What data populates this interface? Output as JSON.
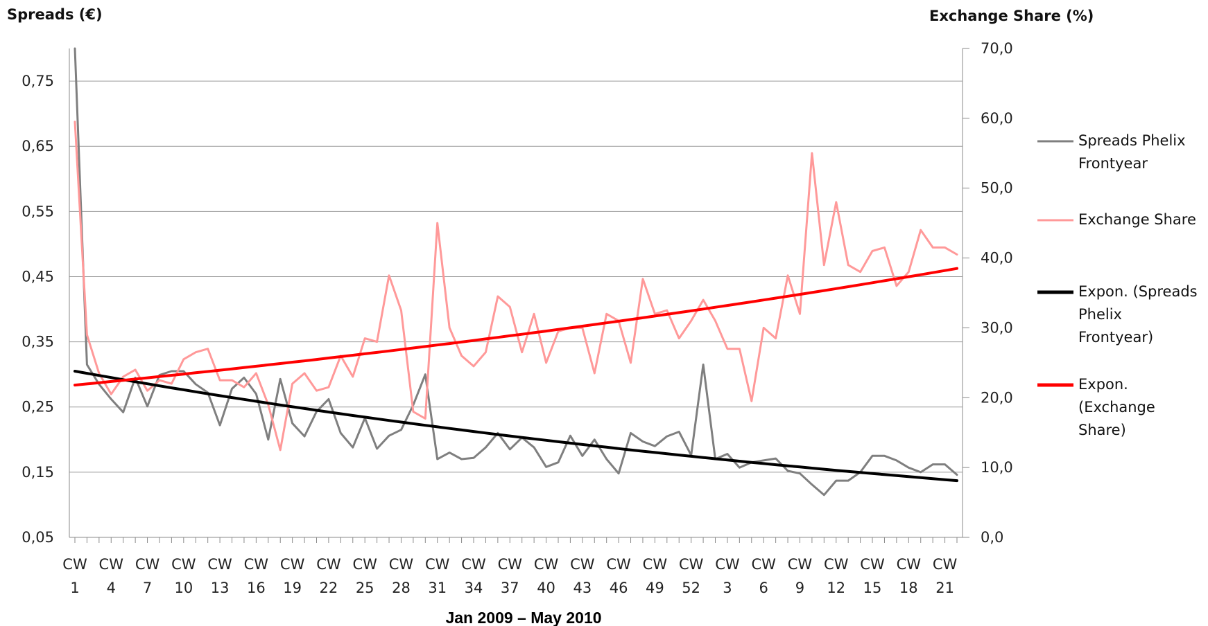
{
  "chart_data": {
    "type": "line",
    "y_left_label": "Spreads (€)",
    "y_right_label": "Exchange Share (%)",
    "x_caption": "Jan 2009 – May 2010",
    "y_left_range": [
      0.05,
      0.8
    ],
    "y_right_range": [
      0.0,
      70.0
    ],
    "y_left_ticks": [
      "0,05",
      "0,15",
      "0,25",
      "0,35",
      "0,45",
      "0,55",
      "0,65",
      "0,75"
    ],
    "y_right_ticks": [
      "0,0",
      "10,0",
      "20,0",
      "30,0",
      "40,0",
      "50,0",
      "60,0",
      "70,0"
    ],
    "x_tick_labels": [
      [
        "CW",
        "1"
      ],
      [
        "CW",
        "4"
      ],
      [
        "CW",
        "7"
      ],
      [
        "CW",
        "10"
      ],
      [
        "CW",
        "13"
      ],
      [
        "CW",
        "16"
      ],
      [
        "CW",
        "19"
      ],
      [
        "CW",
        "22"
      ],
      [
        "CW",
        "25"
      ],
      [
        "CW",
        "28"
      ],
      [
        "CW",
        "31"
      ],
      [
        "CW",
        "34"
      ],
      [
        "CW",
        "37"
      ],
      [
        "CW",
        "40"
      ],
      [
        "CW",
        "43"
      ],
      [
        "CW",
        "46"
      ],
      [
        "CW",
        "49"
      ],
      [
        "CW",
        "52"
      ],
      [
        "CW",
        "3"
      ],
      [
        "CW",
        "6"
      ],
      [
        "CW",
        "9"
      ],
      [
        "CW",
        "12"
      ],
      [
        "CW",
        "15"
      ],
      [
        "CW",
        "18"
      ],
      [
        "CW",
        "21"
      ]
    ],
    "grid": "horizontal",
    "legend_position": "right",
    "series": [
      {
        "name": "Spreads Phelix Frontyear",
        "axis": "left",
        "color": "#7f7f7f",
        "values": [
          0.8,
          0.315,
          0.285,
          0.262,
          0.242,
          0.295,
          0.251,
          0.299,
          0.305,
          0.305,
          0.285,
          0.272,
          0.222,
          0.278,
          0.295,
          0.27,
          0.2,
          0.293,
          0.225,
          0.205,
          0.243,
          0.262,
          0.21,
          0.188,
          0.233,
          0.186,
          0.206,
          0.215,
          0.253,
          0.3,
          0.17,
          0.18,
          0.17,
          0.172,
          0.188,
          0.21,
          0.185,
          0.203,
          0.188,
          0.158,
          0.165,
          0.206,
          0.175,
          0.2,
          0.17,
          0.148,
          0.21,
          0.197,
          0.19,
          0.205,
          0.212,
          0.176,
          0.315,
          0.17,
          0.178,
          0.157,
          0.165,
          0.168,
          0.171,
          0.152,
          0.148,
          0.131,
          0.115,
          0.137,
          0.137,
          0.15,
          0.175,
          0.175,
          0.168,
          0.157,
          0.15,
          0.162,
          0.162,
          0.146
        ]
      },
      {
        "name": "Exchange Share",
        "axis": "right",
        "color": "#ff9999",
        "values": [
          59.5,
          29.0,
          23.5,
          20.5,
          23.0,
          24.0,
          21.0,
          22.5,
          22.0,
          25.5,
          26.5,
          27.0,
          22.5,
          22.5,
          21.5,
          23.5,
          19.0,
          12.5,
          22.0,
          23.5,
          21.0,
          21.5,
          26.0,
          23.0,
          28.5,
          28.0,
          37.5,
          32.5,
          18.0,
          17.0,
          45.0,
          30.0,
          26.0,
          24.5,
          26.5,
          34.5,
          33.0,
          26.5,
          32.0,
          25.0,
          29.5,
          30.0,
          30.0,
          23.5,
          32.0,
          31.0,
          25.0,
          37.0,
          32.0,
          32.5,
          28.5,
          31.0,
          34.0,
          31.0,
          27.0,
          27.0,
          19.5,
          30.0,
          28.5,
          37.5,
          32.0,
          55.0,
          39.0,
          48.0,
          39.0,
          38.0,
          41.0,
          41.5,
          36.0,
          38.0,
          44.0,
          41.5,
          41.5,
          40.5
        ]
      },
      {
        "name": "Expon. (Spreads Phelix Frontyear)",
        "axis": "left",
        "color": "#000000",
        "type": "exponential-trend",
        "start": 0.305,
        "end": 0.137
      },
      {
        "name": "Expon. (Exchange Share)",
        "axis": "right",
        "color": "#ff0000",
        "type": "exponential-trend",
        "start": 21.8,
        "end": 38.5
      }
    ],
    "legend": {
      "items": [
        {
          "lines": [
            "Spreads Phelix",
            "Frontyear"
          ],
          "color": "#7f7f7f",
          "weight": "thin"
        },
        {
          "lines": [
            "Exchange Share"
          ],
          "color": "#ff9999",
          "weight": "thin"
        },
        {
          "lines": [
            "Expon. (Spreads",
            "Phelix",
            "Frontyear)"
          ],
          "color": "#000000",
          "weight": "thick"
        },
        {
          "lines": [
            "Expon.",
            "(Exchange",
            "Share)"
          ],
          "color": "#ff0000",
          "weight": "thick"
        }
      ]
    }
  }
}
